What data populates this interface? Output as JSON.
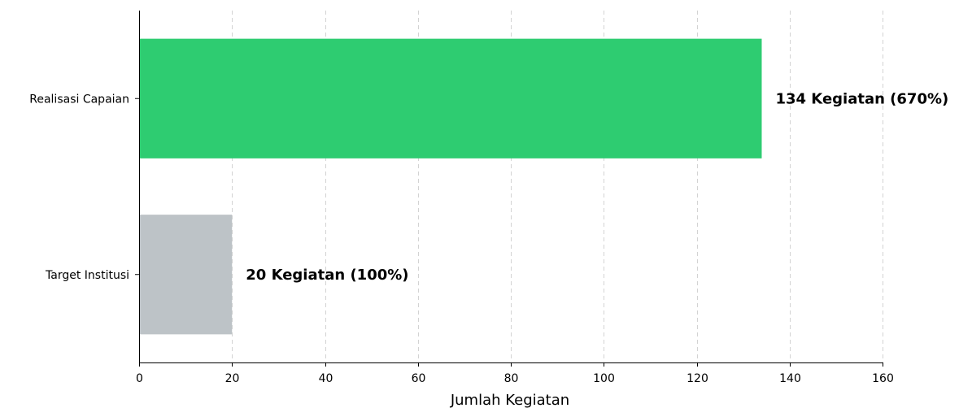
{
  "chart_data": {
    "type": "bar",
    "orientation": "horizontal",
    "categories": [
      "Realisasi Capaian",
      "Target Institusi"
    ],
    "values": [
      134,
      20
    ],
    "bar_labels": [
      "134 Kegiatan (670%)",
      "20 Kegiatan (100%)"
    ],
    "colors": [
      "#2ecc71",
      "#bdc3c7"
    ],
    "title": "",
    "xlabel": "Jumlah Kegiatan",
    "ylabel": "",
    "xlim": [
      0,
      160
    ],
    "x_ticks": [
      0,
      20,
      40,
      60,
      80,
      100,
      120,
      140,
      160
    ],
    "grid": "vertical dashed",
    "legend": "none"
  }
}
